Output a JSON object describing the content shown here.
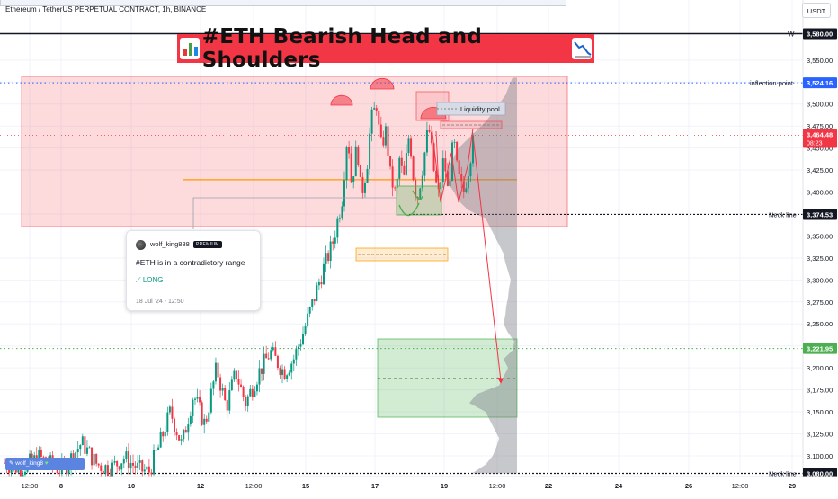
{
  "header": {
    "symbol_title": "Ethereum / TetherUS PERPETUAL CONTRACT, 1h, BINANCE",
    "currency": "USDT"
  },
  "banner": {
    "title": "#ETH Bearish Head and Shoulders",
    "background": "#f23645"
  },
  "note_card": {
    "user": "wolf_king888",
    "badge": "PREMIUM",
    "text": "#ETH is in a contradictory range",
    "direction": "LONG",
    "date": "18 Jul '24 - 12:50"
  },
  "watermark": "wolf_king8",
  "annotations": {
    "liquidity_pool": "Liquidity pool",
    "inflection_point": "inflection point",
    "w_marker": "W",
    "neck_line_upper": "Neck line",
    "neck_line_lower": "Neck line"
  },
  "colors": {
    "up": "#089981",
    "down": "#f23645",
    "red_zone": "#f23645",
    "green_zone": "#4caf50",
    "orange_line": "#ff9800",
    "blue_dotted": "#2962ff",
    "green_dotted": "#4caf50"
  },
  "chart_data": {
    "type": "candlestick",
    "title": "#ETH Bearish Head and Shoulders",
    "symbol": "Ethereum / TetherUS PERPETUAL CONTRACT",
    "interval": "1h",
    "currency": "USDT",
    "ylim": [
      3080,
      3595
    ],
    "y_ticks": [
      3100,
      3125,
      3150,
      3175,
      3200,
      3225,
      3250,
      3275,
      3300,
      3325,
      3350,
      3375,
      3400,
      3425,
      3450,
      3475,
      3500,
      3525,
      3550
    ],
    "x_ticks": [
      "12:00",
      "8",
      "10",
      "12",
      "12:00",
      "15",
      "17",
      "19",
      "12:00",
      "22",
      "24",
      "26",
      "12:00",
      "29"
    ],
    "price_labels": [
      {
        "label": "3,580.00",
        "value": 3580.0,
        "color": "#131722"
      },
      {
        "label": "3,524.16",
        "value": 3524.16,
        "color": "#2962ff"
      },
      {
        "label": "3,464.48",
        "value": 3464.48,
        "color": "#f23645",
        "countdown": "08:23"
      },
      {
        "label": "3,374.53",
        "value": 3374.53,
        "color": "#131722"
      },
      {
        "label": "3,221.95",
        "value": 3221.95,
        "color": "#4caf50"
      },
      {
        "label": "3,080.00",
        "value": 3080.0,
        "color": "#131722"
      }
    ],
    "candles_summary": {
      "first_close": 3082,
      "low": 3081,
      "high": 3532,
      "last_close": 3464.48
    },
    "projection": {
      "from": 3464.48,
      "to": 3185
    }
  }
}
